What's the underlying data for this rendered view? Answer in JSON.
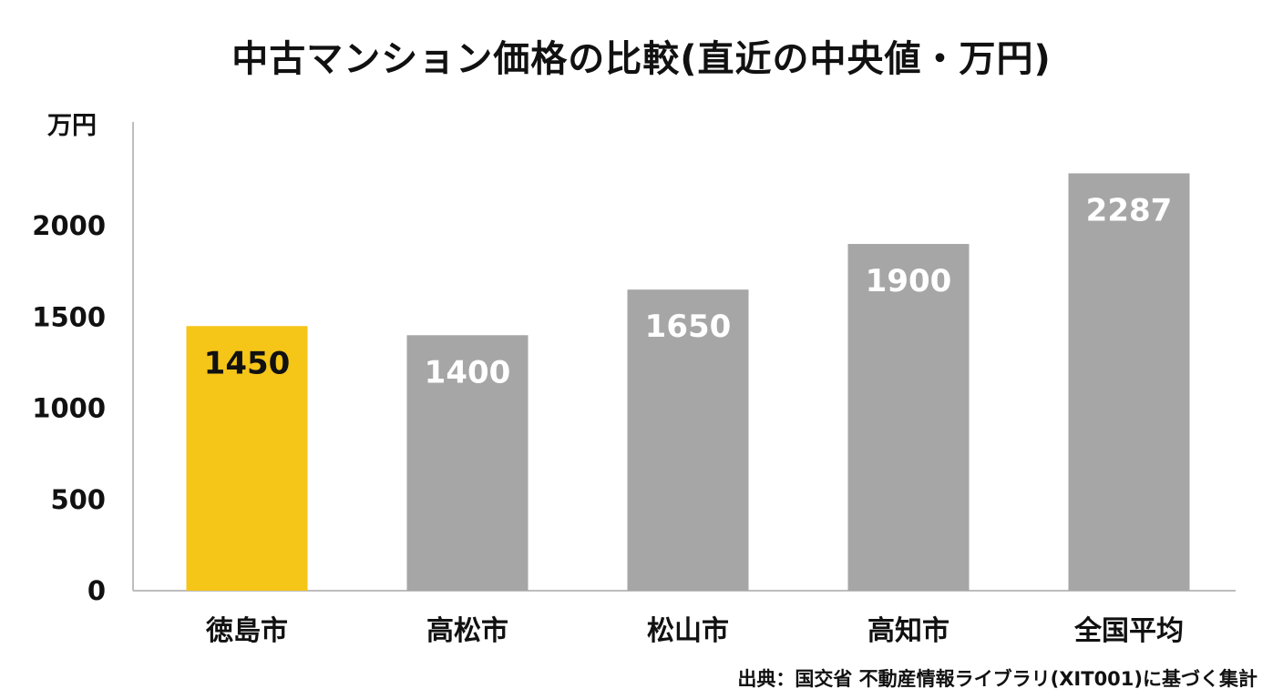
{
  "chart_data": {
    "type": "bar",
    "title": "中古マンション価格の比較(直近の中央値・万円)",
    "ylabel": "万円",
    "xlabel": "",
    "categories": [
      "徳島市",
      "高松市",
      "松山市",
      "高知市",
      "全国平均"
    ],
    "values": [
      1450,
      1400,
      1650,
      1900,
      2287
    ],
    "value_labels": [
      "1450",
      "1400",
      "1650",
      "1900",
      "2287"
    ],
    "ylim": [
      0,
      2500
    ],
    "yticks": [
      0,
      500,
      1000,
      1500,
      2000
    ],
    "ytick_labels": [
      "0",
      "500",
      "1000",
      "1500",
      "2000"
    ],
    "grid": false,
    "highlight_index": 0,
    "colors": {
      "highlight": "#F5C518",
      "default": "#A6A6A6",
      "highlight_label": "#111111",
      "default_label": "#FFFFFF",
      "axis": "#BDBDBD"
    }
  },
  "source_note": "出典：国交省 不動産情報ライブラリ(XIT001)に基づく集計"
}
